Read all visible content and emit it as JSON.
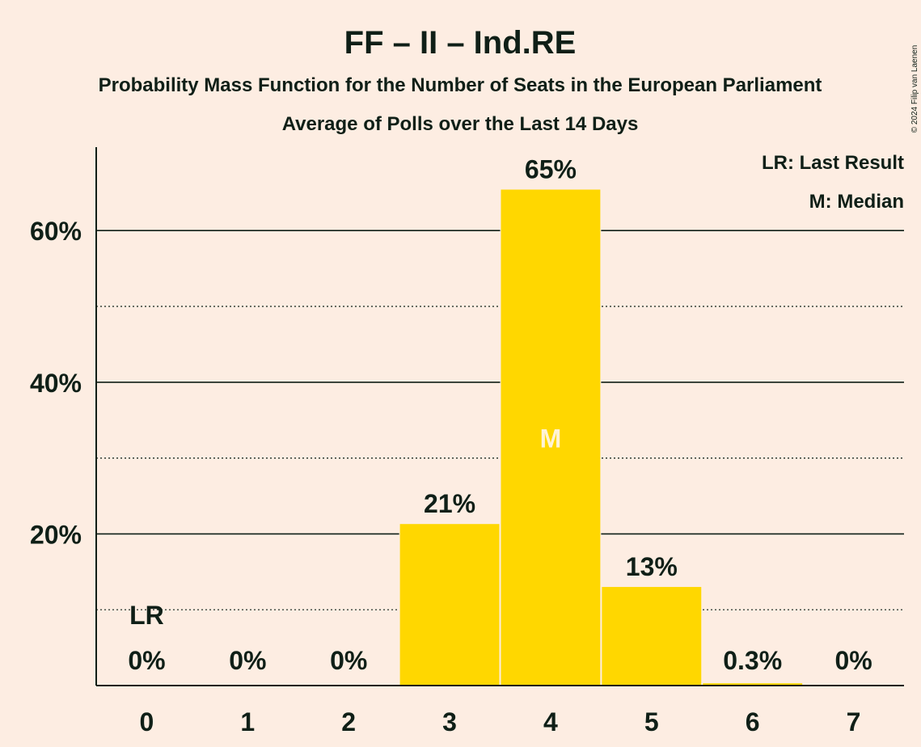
{
  "chart_data": {
    "type": "bar",
    "title": "FF – II – Ind.RE",
    "subtitle": "Probability Mass Function for the Number of Seats in the European Parliament",
    "subtitle2": "Average of Polls over the Last 14 Days",
    "categories": [
      "0",
      "1",
      "2",
      "3",
      "4",
      "5",
      "6",
      "7"
    ],
    "values": [
      0,
      0,
      0,
      21.3,
      65.4,
      13.0,
      0.3,
      0
    ],
    "value_labels": [
      "0%",
      "0%",
      "0%",
      "21%",
      "65%",
      "13%",
      "0.3%",
      "0%"
    ],
    "ylim": [
      0,
      71
    ],
    "yticks": [
      {
        "value": 20,
        "label": "20%"
      },
      {
        "value": 40,
        "label": "40%"
      },
      {
        "value": 60,
        "label": "60%"
      }
    ],
    "dotted_gridlines": [
      10,
      30,
      50
    ],
    "last_result_index": 0,
    "last_result_label": "LR",
    "median_index": 4,
    "median_label": "M",
    "legend": [
      "LR: Last Result",
      "M: Median"
    ],
    "legend_position": "top-right",
    "bar_color": "#FFD700",
    "background_color": "#FDEDE2",
    "text_color": "#0f1f17",
    "copyright": "© 2024 Filip van Laenen"
  }
}
